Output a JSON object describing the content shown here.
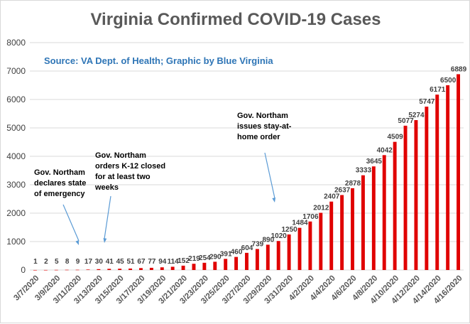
{
  "chart_data": {
    "type": "bar",
    "title": "Virginia Confirmed COVID-19 Cases",
    "subtitle": "Source: VA Dept. of Health; Graphic by Blue Virginia",
    "xlabel": "",
    "ylabel": "",
    "ylim": [
      0,
      8000
    ],
    "yticks": [
      "0",
      "1000",
      "2000",
      "3000",
      "4000",
      "5000",
      "6000",
      "7000",
      "8000"
    ],
    "grid": true,
    "bar_color": "#e00000",
    "categories": [
      "3/7/2020",
      "3/8/2020",
      "3/9/2020",
      "3/10/2020",
      "3/11/2020",
      "3/12/2020",
      "3/13/2020",
      "3/14/2020",
      "3/15/2020",
      "3/16/2020",
      "3/17/2020",
      "3/18/2020",
      "3/19/2020",
      "3/20/2020",
      "3/21/2020",
      "3/22/2020",
      "3/23/2020",
      "3/24/2020",
      "3/25/2020",
      "3/26/2020",
      "3/27/2020",
      "3/28/2020",
      "3/29/2020",
      "3/30/2020",
      "3/31/2020",
      "4/1/2020",
      "4/2/2020",
      "4/3/2020",
      "4/4/2020",
      "4/5/2020",
      "4/6/2020",
      "4/7/2020",
      "4/8/2020",
      "4/9/2020",
      "4/10/2020",
      "4/11/2020",
      "4/12/2020",
      "4/13/2020",
      "4/14/2020",
      "4/15/2020",
      "4/16/2020"
    ],
    "values": [
      1,
      2,
      5,
      8,
      9,
      17,
      30,
      41,
      45,
      51,
      67,
      77,
      94,
      114,
      152,
      219,
      254,
      290,
      391,
      460,
      604,
      739,
      890,
      1020,
      1250,
      1484,
      1706,
      2012,
      2407,
      2637,
      2878,
      3333,
      3645,
      4042,
      4509,
      5077,
      5274,
      5747,
      6171,
      6500,
      6889
    ],
    "data_labels": [
      "1",
      "2",
      "5",
      "8",
      "9",
      "17",
      "30",
      "41",
      "45",
      "51",
      "67",
      "77",
      "94",
      "114",
      "152",
      "219",
      "254",
      "290",
      "391",
      "460",
      "604",
      "739",
      "890",
      "1020",
      "1250",
      "1484",
      "1706",
      "2012",
      "2407",
      "2637",
      "2878",
      "3333",
      "3645",
      "4042",
      "4509",
      "5077",
      "5274",
      "5747",
      "6171",
      "6500",
      "6889"
    ],
    "xtick_labels": [
      "3/7/2020",
      "3/9/2020",
      "3/11/2020",
      "3/13/2020",
      "3/15/2020",
      "3/17/2020",
      "3/19/2020",
      "3/21/2020",
      "3/23/2020",
      "3/25/2020",
      "3/27/2020",
      "3/29/2020",
      "3/31/2020",
      "4/2/2020",
      "4/4/2020",
      "4/6/2020",
      "4/8/2020",
      "4/10/2020",
      "4/12/2020",
      "4/14/2020",
      "4/16/2020"
    ],
    "annotations": [
      {
        "lines": [
          "Gov. Northam",
          "declares state",
          "of emergency"
        ],
        "target_category": "3/11/2020"
      },
      {
        "lines": [
          "Gov. Northam",
          "orders K-12 closed",
          "for at least two",
          "weeks"
        ],
        "target_category": "3/13/2020"
      },
      {
        "lines": [
          "Gov. Northam",
          "issues stay-at-",
          "home order"
        ],
        "target_category": "3/30/2020"
      }
    ],
    "colors": {
      "title": "#595959",
      "subtitle": "#2e75b6",
      "arrow": "#5b9bd5"
    }
  }
}
